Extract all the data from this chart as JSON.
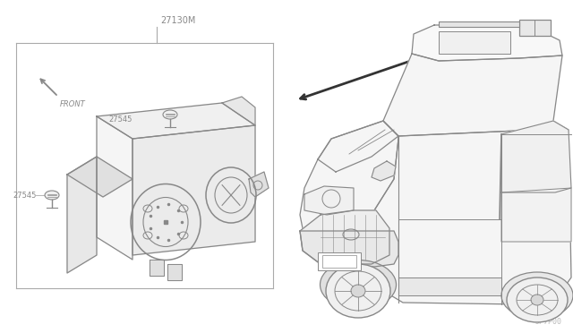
{
  "bg_color": "#ffffff",
  "lc": "#aaaaaa",
  "dc": "#888888",
  "lbl": "#888888",
  "fig_width": 6.4,
  "fig_height": 3.72,
  "watermark": "JP7P00",
  "p27130M": "27130M",
  "p27545": "27545"
}
